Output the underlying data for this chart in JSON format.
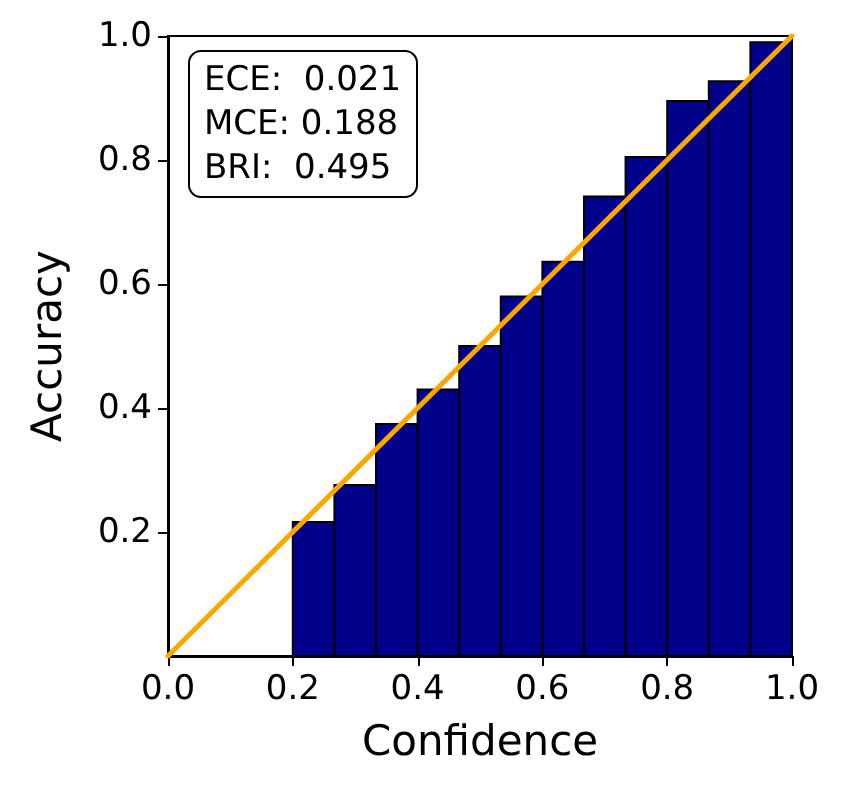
{
  "chart_data": {
    "type": "histogram",
    "xlabel": "Confidence",
    "ylabel": "Accuracy",
    "xlim": [
      0,
      1
    ],
    "ylim": [
      0,
      1
    ],
    "xticks": [
      {
        "value": 0,
        "label": "0.0"
      },
      {
        "value": 0.2,
        "label": "0.2"
      },
      {
        "value": 0.4,
        "label": "0.4"
      },
      {
        "value": 0.6,
        "label": "0.6"
      },
      {
        "value": 0.8,
        "label": "0.8"
      },
      {
        "value": 1,
        "label": "1.0"
      }
    ],
    "yticks": [
      {
        "value": 0.2,
        "label": "0.2"
      },
      {
        "value": 0.4,
        "label": "0.4"
      },
      {
        "value": 0.6,
        "label": "0.6"
      },
      {
        "value": 0.8,
        "label": "0.8"
      },
      {
        "value": 1,
        "label": "1.0"
      }
    ],
    "annotations": [
      "ECE:  0.021",
      "MCE: 0.188",
      "BRI:  0.495"
    ],
    "grid": false,
    "series": [
      {
        "color": "#00008b",
        "bins": [
          0.2,
          0.2667,
          0.3333,
          0.4,
          0.4667,
          0.5333,
          0.6,
          0.6667,
          0.7333,
          0.8,
          0.8667,
          0.9333,
          1.0
        ],
        "values": [
          0.216,
          0.276,
          0.374,
          0.43,
          0.5,
          0.58,
          0.636,
          0.741,
          0.805,
          0.895,
          0.927,
          0.99
        ]
      },
      {
        "type": "line",
        "color": "#ffa500",
        "marker": "none",
        "x": [
          0,
          1
        ],
        "values": [
          0,
          1
        ]
      }
    ]
  }
}
